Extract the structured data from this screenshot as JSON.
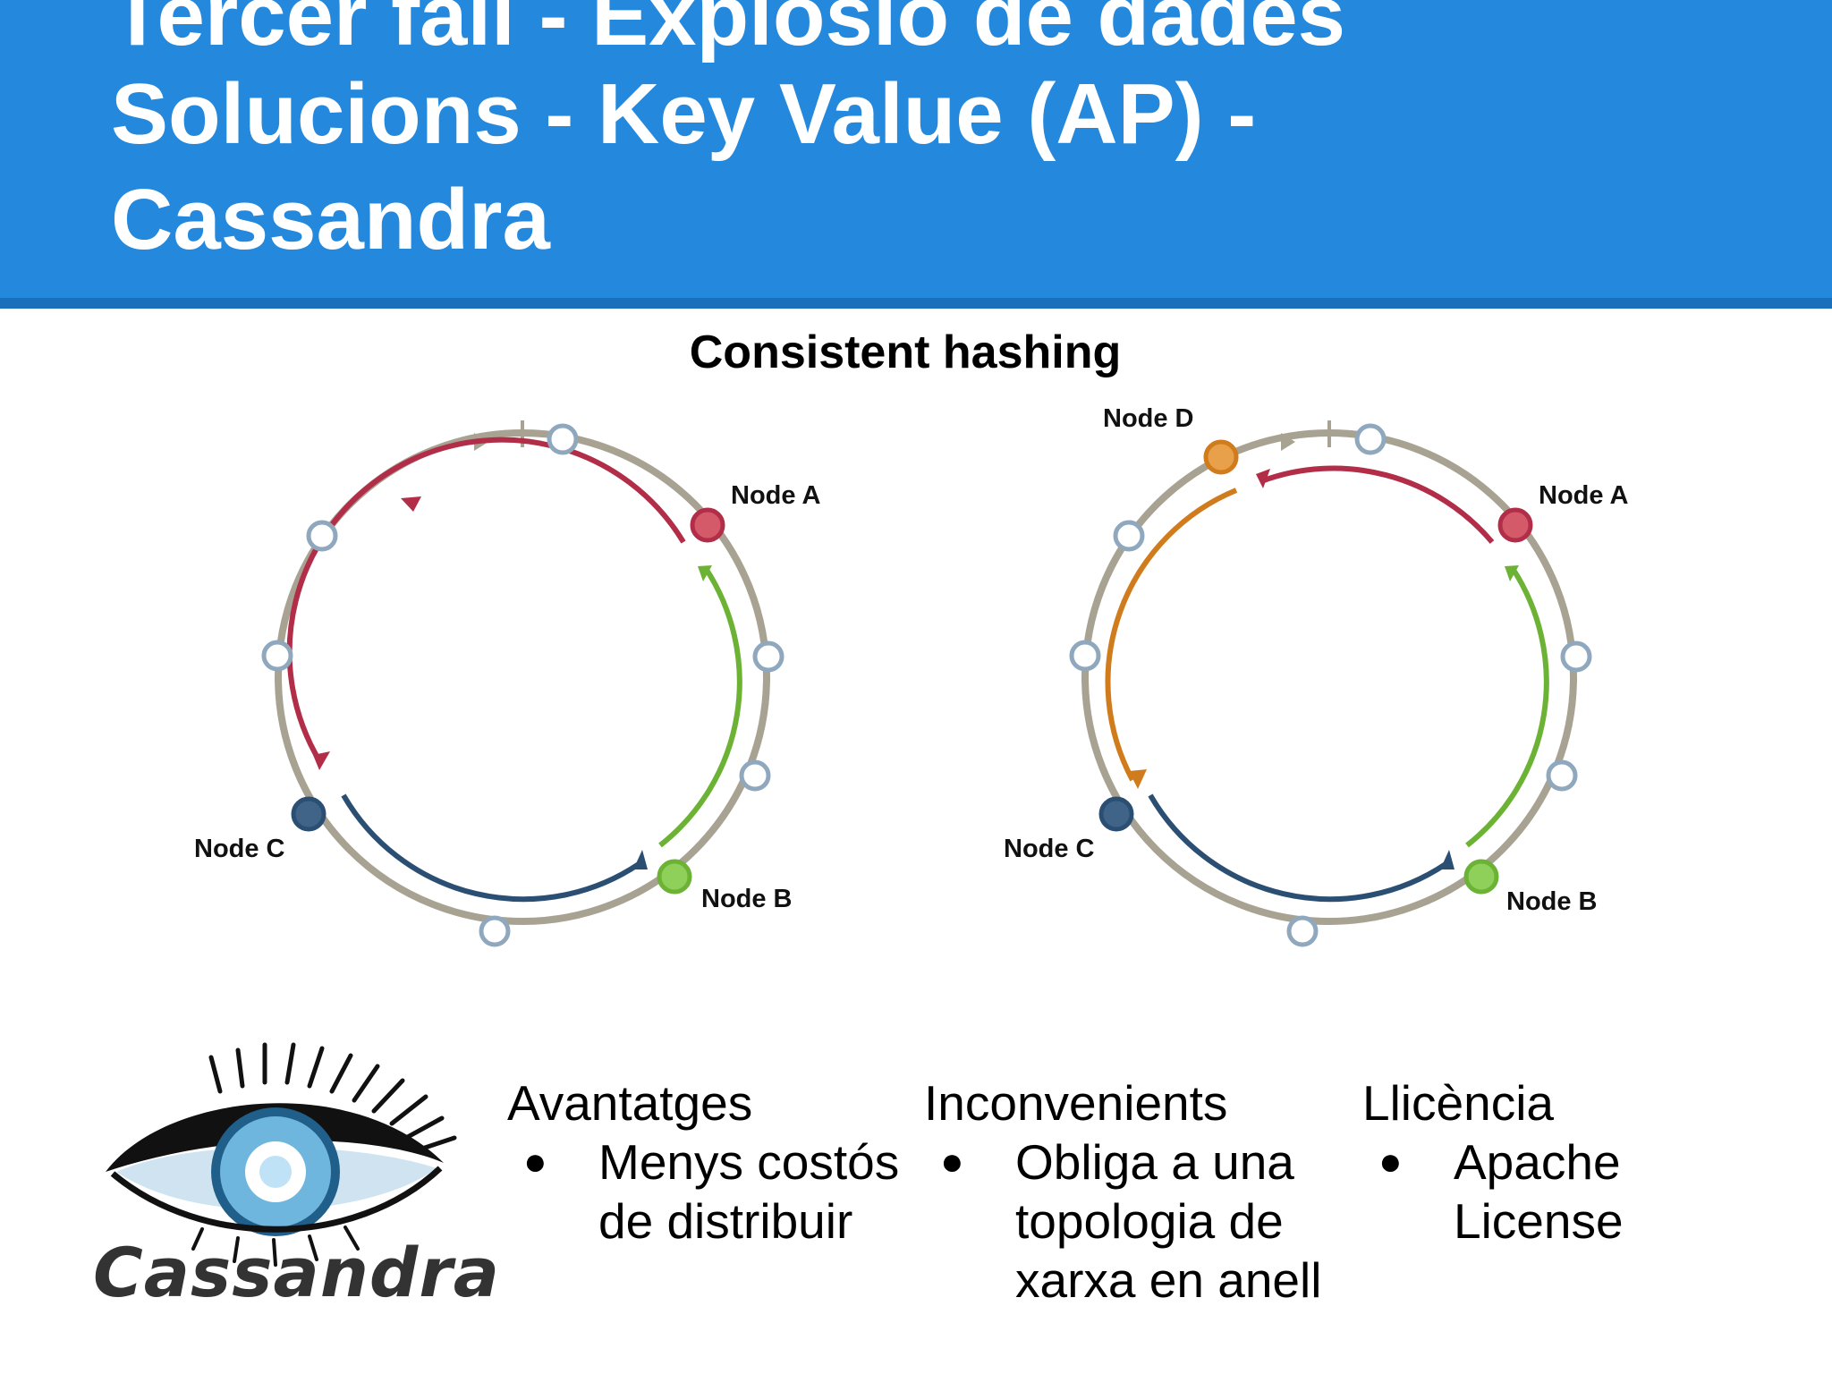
{
  "slide": {
    "title_lines": [
      "Tercer fall - Explosió de dades",
      "Solucions - Key Value (AP) -",
      "Cassandra"
    ],
    "subtitle": "Consistent hashing"
  },
  "diagram_left": {
    "nodes": {
      "a": "Node A",
      "b": "Node B",
      "c": "Node C"
    },
    "colors": {
      "ring": "#a8a292",
      "node_a": "#b12d48",
      "node_b": "#6cb335",
      "node_c": "#2b4f73",
      "token": "#8fa8be"
    }
  },
  "diagram_right": {
    "nodes": {
      "a": "Node A",
      "b": "Node B",
      "c": "Node C",
      "d": "Node D"
    },
    "colors": {
      "ring": "#a8a292",
      "node_a": "#b12d48",
      "node_b": "#6cb335",
      "node_c": "#2b4f73",
      "node_d": "#d07b1c",
      "token": "#8fa8be"
    }
  },
  "logo": {
    "wordmark": "Cassandra",
    "icon": "cassandra-eye-logo"
  },
  "columns": {
    "advantages": {
      "heading": "Avantatges",
      "lines": [
        "Menys costós",
        "de distribuir"
      ]
    },
    "disadvantages": {
      "heading": "Inconvenients",
      "lines": [
        "Obliga a una",
        "topologia de",
        "xarxa en anell"
      ]
    },
    "license": {
      "heading": "Llicència",
      "lines": [
        "Apache",
        "License"
      ]
    },
    "bullet": "●"
  }
}
